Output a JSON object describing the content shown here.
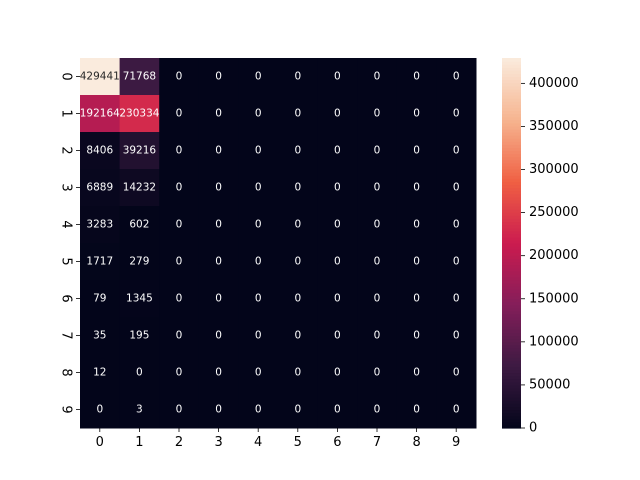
{
  "chart_data": {
    "type": "heatmap",
    "title": "",
    "xlabel": "",
    "ylabel": "",
    "x_categories": [
      "0",
      "1",
      "2",
      "3",
      "4",
      "5",
      "6",
      "7",
      "8",
      "9"
    ],
    "y_categories": [
      "0",
      "1",
      "2",
      "3",
      "4",
      "5",
      "6",
      "7",
      "8",
      "9"
    ],
    "values": [
      [
        429441,
        71768,
        0,
        0,
        0,
        0,
        0,
        0,
        0,
        0
      ],
      [
        192164,
        230334,
        0,
        0,
        0,
        0,
        0,
        0,
        0,
        0
      ],
      [
        8406,
        39216,
        0,
        0,
        0,
        0,
        0,
        0,
        0,
        0
      ],
      [
        6889,
        14232,
        0,
        0,
        0,
        0,
        0,
        0,
        0,
        0
      ],
      [
        3283,
        602,
        0,
        0,
        0,
        0,
        0,
        0,
        0,
        0
      ],
      [
        1717,
        279,
        0,
        0,
        0,
        0,
        0,
        0,
        0,
        0
      ],
      [
        79,
        1345,
        0,
        0,
        0,
        0,
        0,
        0,
        0,
        0
      ],
      [
        35,
        195,
        0,
        0,
        0,
        0,
        0,
        0,
        0,
        0
      ],
      [
        12,
        0,
        0,
        0,
        0,
        0,
        0,
        0,
        0,
        0
      ],
      [
        0,
        3,
        0,
        0,
        0,
        0,
        0,
        0,
        0,
        0
      ]
    ],
    "colorbar": {
      "range": [
        0,
        429441
      ],
      "ticks": [
        0,
        50000,
        100000,
        150000,
        200000,
        250000,
        300000,
        350000,
        400000
      ],
      "tick_labels": [
        "0",
        "50000",
        "100000",
        "150000",
        "200000",
        "250000",
        "300000",
        "350000",
        "400000"
      ]
    },
    "colormap": "rocket",
    "colormap_stops": [
      "#03051a",
      "#3c1a42",
      "#841e5a",
      "#cb1b4f",
      "#f06043",
      "#f6b48f",
      "#faebdd"
    ],
    "annotation_light_text": "#ffffff",
    "annotation_dark_text": "#262626",
    "grid": false
  }
}
